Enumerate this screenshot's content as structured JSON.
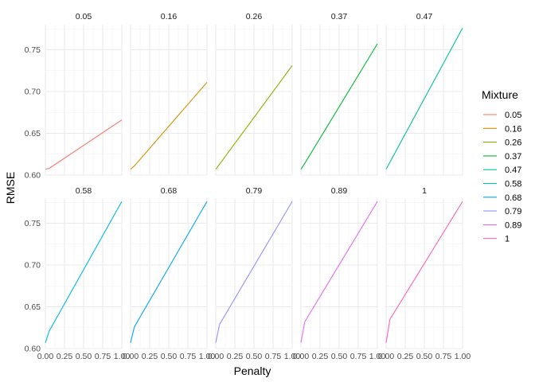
{
  "chart_data": {
    "type": "line",
    "xlabel": "Penalty",
    "ylabel": "RMSE",
    "xlim": [
      0,
      1
    ],
    "ylim": [
      0.6,
      0.78
    ],
    "x_ticks": [
      0,
      0.25,
      0.5,
      0.75,
      1
    ],
    "x_tick_labels": [
      "0.00",
      "0.25",
      "0.50",
      "0.75",
      "1.00"
    ],
    "y_ticks": [
      0.6,
      0.65,
      0.7,
      0.75
    ],
    "y_tick_labels": [
      "0.60",
      "0.65",
      "0.70",
      "0.75"
    ],
    "grid": true,
    "legend": {
      "title": "Mixture",
      "placement": "right"
    },
    "facet_rows": 2,
    "facet_cols": 5,
    "series": [
      {
        "name": "0.05",
        "color": "#F8766D",
        "x": [
          0,
          0.05,
          1
        ],
        "y": [
          0.607,
          0.608,
          0.666
        ]
      },
      {
        "name": "0.16",
        "color": "#D39200",
        "x": [
          0,
          0.05,
          1
        ],
        "y": [
          0.607,
          0.611,
          0.711
        ]
      },
      {
        "name": "0.26",
        "color": "#93AA00",
        "x": [
          0,
          0.05,
          1
        ],
        "y": [
          0.607,
          0.613,
          0.731
        ]
      },
      {
        "name": "0.37",
        "color": "#00BA38",
        "x": [
          0,
          0.05,
          1
        ],
        "y": [
          0.607,
          0.614,
          0.757
        ]
      },
      {
        "name": "0.47",
        "color": "#00C19F",
        "x": [
          0,
          1
        ],
        "y": [
          0.607,
          0.776
        ]
      },
      {
        "name": "0.58",
        "color": "#00B9E3",
        "x": [
          0,
          0.05,
          1
        ],
        "y": [
          0.607,
          0.621,
          0.776
        ]
      },
      {
        "name": "0.68",
        "color": "#00A5FF",
        "x": [
          0,
          0.05,
          1
        ],
        "y": [
          0.607,
          0.626,
          0.776
        ]
      },
      {
        "name": "0.79",
        "color": "#9590FF",
        "x": [
          0,
          0.05,
          1
        ],
        "y": [
          0.607,
          0.629,
          0.776
        ]
      },
      {
        "name": "0.89",
        "color": "#E76BF3",
        "x": [
          0,
          0.05,
          1
        ],
        "y": [
          0.607,
          0.632,
          0.776
        ]
      },
      {
        "name": "1",
        "color": "#FF62BC",
        "x": [
          0,
          0.05,
          1
        ],
        "y": [
          0.607,
          0.635,
          0.776
        ]
      }
    ]
  }
}
